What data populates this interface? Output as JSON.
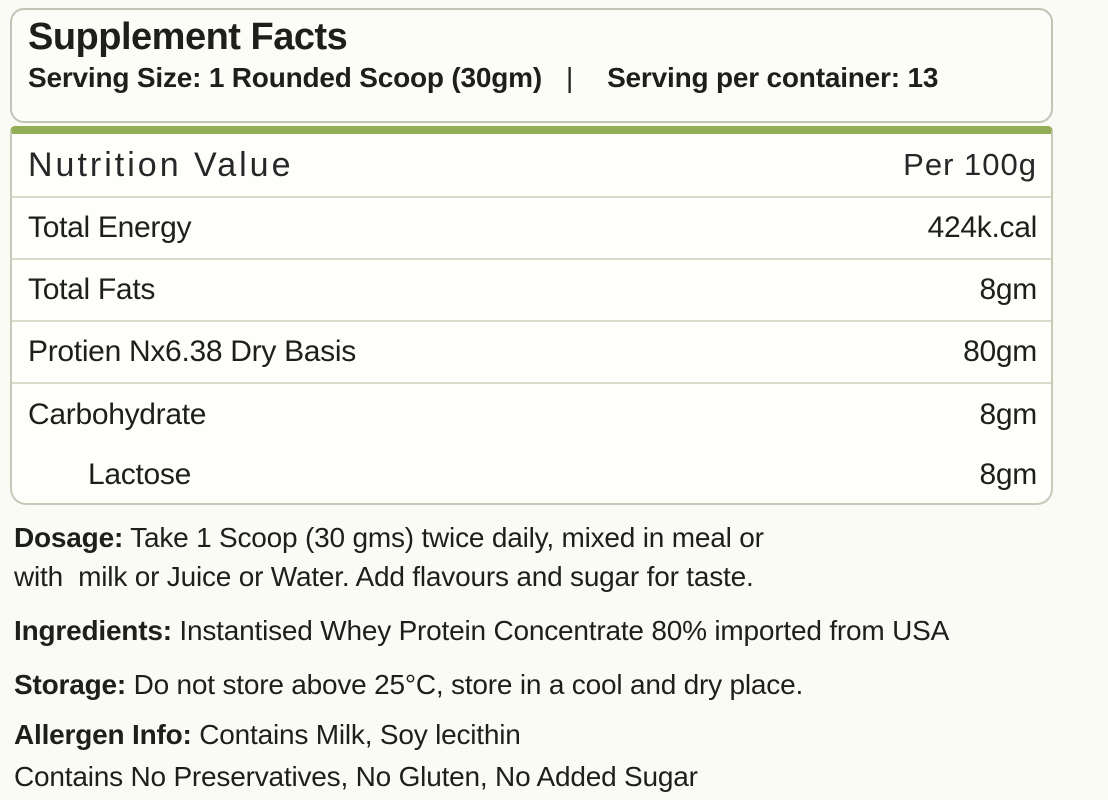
{
  "header": {
    "title": "Supplement Facts",
    "serving_size": "Serving Size: 1 Rounded Scoop (30gm)",
    "separator": "|",
    "servings_per_container": "Serving per container: 13"
  },
  "table": {
    "header": {
      "label": "Nutrition Value",
      "value": "Per 100g"
    },
    "rows": [
      {
        "label": "Total Energy",
        "value": "424k.cal"
      },
      {
        "label": "Total Fats",
        "value": "8gm"
      },
      {
        "label": "Protien Nx6.38 Dry Basis",
        "value": "80gm"
      },
      {
        "label": "Carbohydrate",
        "value": "8gm"
      },
      {
        "label": "Lactose",
        "value": "8gm"
      }
    ]
  },
  "notes": {
    "dosage_label": "Dosage:",
    "dosage_line1": " Take 1 Scoop (30 gms) twice daily, mixed in meal or",
    "dosage_line2": "with  milk or Juice or Water. Add flavours and sugar for taste.",
    "ingredients_label": "Ingredients:",
    "ingredients_text": " Instantised Whey Protein Concentrate 80% imported from USA",
    "storage_label": "Storage:",
    "storage_text": " Do not store above 25°C, store in a cool and dry place.",
    "allergen_label": "Allergen Info:",
    "allergen_text": " Contains Milk, Soy lecithin",
    "contains_text": "Contains No Preservatives, No Gluten, No Added Sugar"
  },
  "colors": {
    "accent_green": "#94ae55",
    "box_border": "#c1c5b4",
    "row_divider": "#d9dcc8",
    "text": "#1e1e1c",
    "background": "#fbfbf5"
  }
}
